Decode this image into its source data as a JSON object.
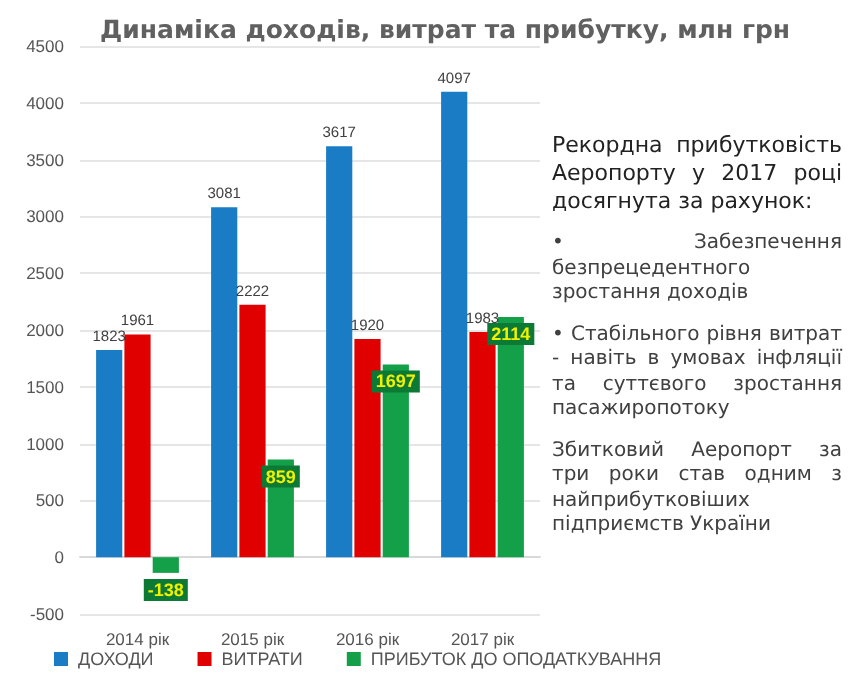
{
  "chart_data": {
    "type": "bar",
    "title": "Динаміка доходів, витрат та прибутку, млн грн",
    "categories": [
      "2014 рік",
      "2015 рік",
      "2016 рік",
      "2017 рік"
    ],
    "series": [
      {
        "name": "ДОХОДИ",
        "color": "#1a7cc4",
        "values": [
          1823,
          3081,
          3617,
          4097
        ]
      },
      {
        "name": "ВИТРАТИ",
        "color": "#e00000",
        "values": [
          1961,
          2222,
          1920,
          1983
        ]
      },
      {
        "name": "ПРИБУТОК ДО ОПОДАТКУВАННЯ",
        "color": "#14a048",
        "values": [
          -138,
          859,
          1697,
          2114
        ]
      }
    ],
    "ylim": [
      -500,
      4500
    ],
    "yticks": [
      -500,
      0,
      500,
      1000,
      1500,
      2000,
      2500,
      3000,
      3500,
      4000,
      4500
    ],
    "grid": "y",
    "legend": "bottom",
    "data_labels": true,
    "annotations": [
      "Рекордна прибутковість Аеропорту у 2017 році досягнута за рахунок:",
      "• Забезпечення безпрецедентного зростання доходів",
      "• Стабільного рівня витрат - навіть в умовах інфляції та суттєвого зростання пасажиропотоку",
      "Збитковий Аеропорт за три роки став одним з найприбутковіших підприємств України"
    ]
  }
}
